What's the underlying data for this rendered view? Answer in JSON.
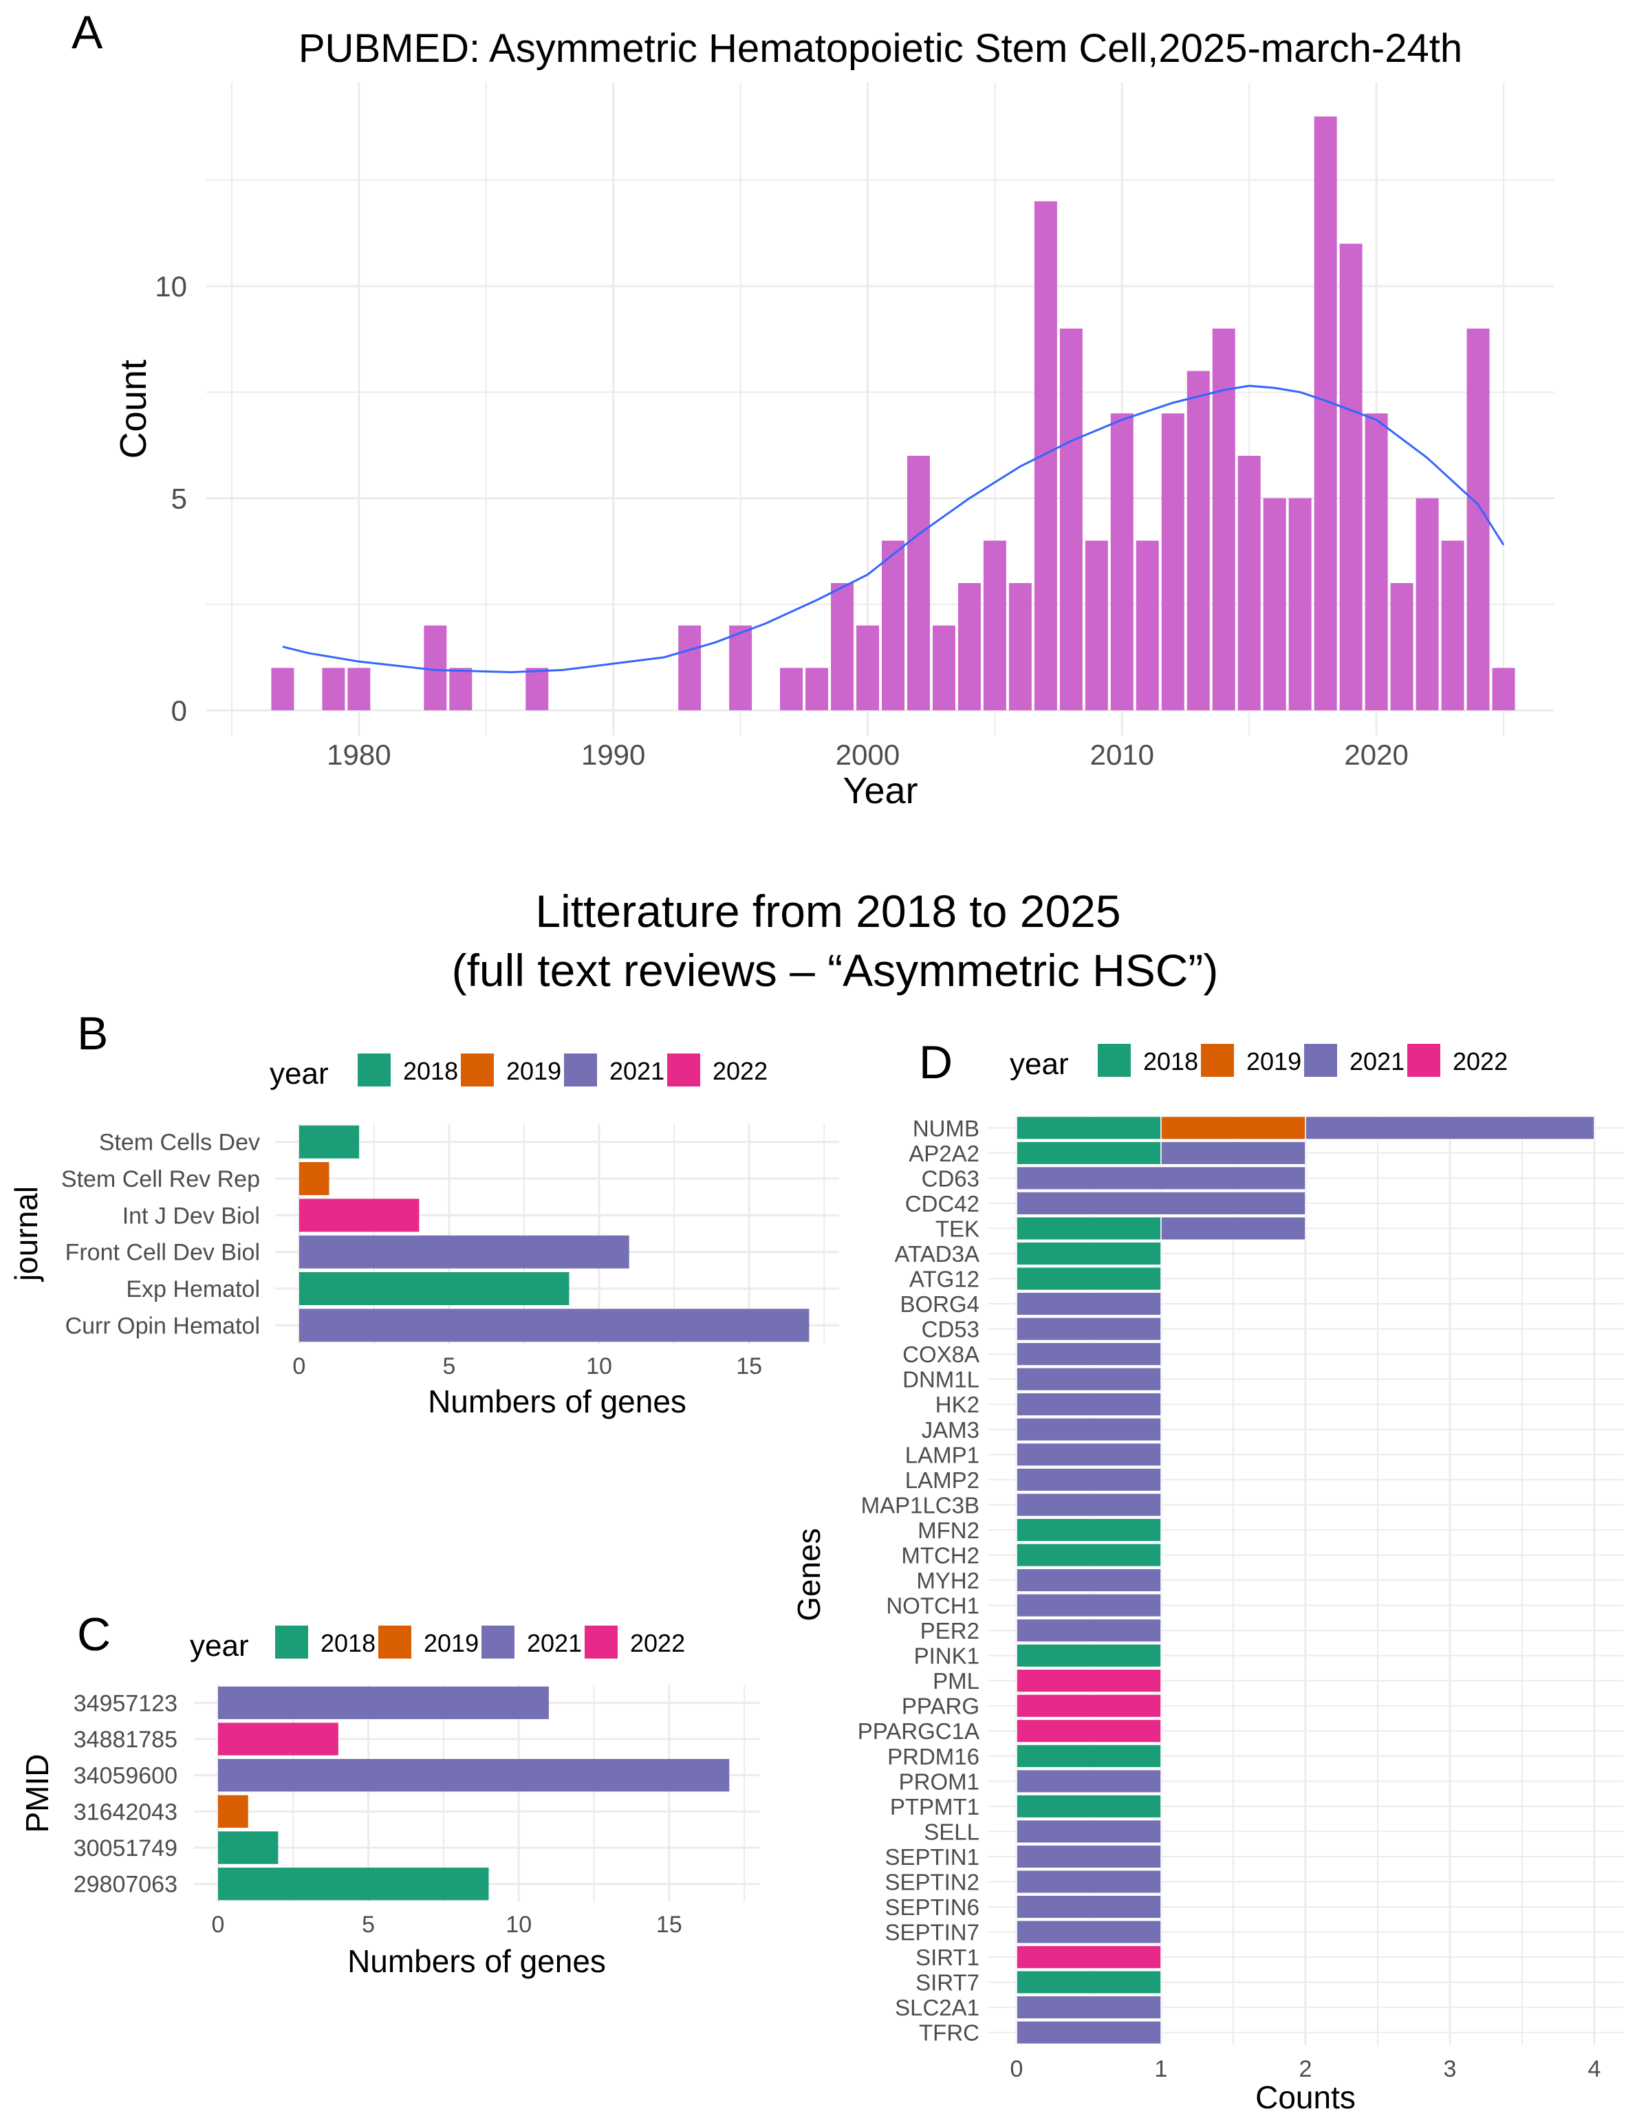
{
  "colors": {
    "2018": "#1b9e77",
    "2019": "#d95f02",
    "2021": "#7570b3",
    "2022": "#e7298a",
    "histogram": "#cc66cc",
    "smooth": "#3366ff",
    "grid": "#ebebeb",
    "tick": "#4d4d4d"
  },
  "figure": {
    "section_title_line1": "Litterature from 2018 to 2025",
    "section_title_line2": "(full text reviews – “Asymmetric HSC”)"
  },
  "chart_data": [
    {
      "id": "A",
      "panel_label": "A",
      "type": "bar",
      "title": "PUBMED: Asymmetric Hematopoietic Stem Cell,2025-march-24th",
      "xlabel": "Year",
      "ylabel": "Count",
      "xlim": [
        1974,
        2027
      ],
      "ylim": [
        -0.6,
        14.8
      ],
      "xticks": [
        1980,
        1990,
        2000,
        2010,
        2020
      ],
      "xtick_labels": [
        "1980",
        "1990",
        "2000",
        "2010",
        "2020"
      ],
      "yticks": [
        0,
        5,
        10
      ],
      "ytick_labels": [
        "0",
        "5",
        "10"
      ],
      "grid": true,
      "x": [
        1977,
        1979,
        1980,
        1983,
        1984,
        1987,
        1993,
        1995,
        1997,
        1998,
        1999,
        2000,
        2001,
        2002,
        2003,
        2004,
        2005,
        2006,
        2007,
        2008,
        2009,
        2010,
        2011,
        2012,
        2013,
        2014,
        2015,
        2016,
        2017,
        2018,
        2019,
        2020,
        2021,
        2022,
        2023,
        2024,
        2025
      ],
      "values": [
        1,
        1,
        1,
        2,
        1,
        1,
        2,
        2,
        1,
        1,
        3,
        2,
        4,
        6,
        2,
        3,
        4,
        3,
        12,
        9,
        4,
        7,
        4,
        7,
        8,
        9,
        6,
        5,
        5,
        14,
        11,
        7,
        3,
        5,
        4,
        9,
        1
      ],
      "smooth": {
        "x": [
          1977,
          1978,
          1980,
          1983,
          1986,
          1988,
          1990,
          1992,
          1994,
          1996,
          1998,
          2000,
          2002,
          2004,
          2006,
          2008,
          2010,
          2012,
          2014,
          2015,
          2016,
          2017,
          2018,
          2020,
          2022,
          2024,
          2025
        ],
        "y": [
          1.5,
          1.35,
          1.15,
          0.95,
          0.9,
          0.95,
          1.1,
          1.25,
          1.6,
          2.05,
          2.6,
          3.2,
          4.15,
          5.0,
          5.75,
          6.35,
          6.85,
          7.25,
          7.55,
          7.65,
          7.6,
          7.5,
          7.3,
          6.85,
          5.95,
          4.85,
          3.9
        ]
      }
    },
    {
      "id": "B",
      "panel_label": "B",
      "type": "bar",
      "orientation": "horizontal",
      "legend_title": "year",
      "legend": [
        "2018",
        "2019",
        "2021",
        "2022"
      ],
      "legend_position": "top",
      "xlabel": "Numbers of genes",
      "ylabel": "journal",
      "xlim": [
        -0.8,
        18
      ],
      "xticks": [
        0,
        5,
        10,
        15
      ],
      "xtick_labels": [
        "0",
        "5",
        "10",
        "15"
      ],
      "grid": true,
      "categories": [
        "Stem Cells Dev",
        "Stem Cell Rev Rep",
        "Int J Dev Biol",
        "Front Cell Dev Biol",
        "Exp Hematol",
        "Curr Opin Hematol"
      ],
      "values": [
        2,
        1,
        4,
        11,
        9,
        17
      ],
      "series": [
        "2018",
        "2019",
        "2022",
        "2021",
        "2018",
        "2021"
      ]
    },
    {
      "id": "C",
      "panel_label": "C",
      "type": "bar",
      "orientation": "horizontal",
      "legend_title": "year",
      "legend": [
        "2018",
        "2019",
        "2021",
        "2022"
      ],
      "legend_position": "top",
      "xlabel": "Numbers of genes",
      "ylabel": "PMID",
      "xlim": [
        -0.8,
        18
      ],
      "xticks": [
        0,
        5,
        10,
        15
      ],
      "xtick_labels": [
        "0",
        "5",
        "10",
        "15"
      ],
      "grid": true,
      "categories": [
        "34957123",
        "34881785",
        "34059600",
        "31642043",
        "30051749",
        "29807063"
      ],
      "values": [
        11,
        4,
        17,
        1,
        2,
        9
      ],
      "series": [
        "2021",
        "2022",
        "2021",
        "2019",
        "2018",
        "2018"
      ]
    },
    {
      "id": "D",
      "panel_label": "D",
      "type": "bar",
      "orientation": "horizontal",
      "stacked": true,
      "legend_title": "year",
      "legend": [
        "2018",
        "2019",
        "2021",
        "2022"
      ],
      "legend_position": "top",
      "xlabel": "Counts",
      "ylabel": "Genes",
      "xlim": [
        -0.2,
        4.2
      ],
      "xticks": [
        0,
        1,
        2,
        3,
        4
      ],
      "xtick_labels": [
        "0",
        "1",
        "2",
        "3",
        "4"
      ],
      "grid": true,
      "categories": [
        "NUMB",
        "AP2A2",
        "CD63",
        "CDC42",
        "TEK",
        "ATAD3A",
        "ATG12",
        "BORG4",
        "CD53",
        "COX8A",
        "DNM1L",
        "HK2",
        "JAM3",
        "LAMP1",
        "LAMP2",
        "MAP1LC3B",
        "MFN2",
        "MTCH2",
        "MYH2",
        "NOTCH1",
        "PER2",
        "PINK1",
        "PML",
        "PPARG",
        "PPARGC1A",
        "PRDM16",
        "PROM1",
        "PTPMT1",
        "SELL",
        "SEPTIN1",
        "SEPTIN2",
        "SEPTIN6",
        "SEPTIN7",
        "SIRT1",
        "SIRT7",
        "SLC2A1",
        "TFRC"
      ],
      "stacks": [
        [
          [
            "2018",
            1
          ],
          [
            "2019",
            1
          ],
          [
            "2021",
            2
          ]
        ],
        [
          [
            "2018",
            1
          ],
          [
            "2021",
            1
          ]
        ],
        [
          [
            "2021",
            2
          ]
        ],
        [
          [
            "2021",
            2
          ]
        ],
        [
          [
            "2018",
            1
          ],
          [
            "2021",
            1
          ]
        ],
        [
          [
            "2018",
            1
          ]
        ],
        [
          [
            "2018",
            1
          ]
        ],
        [
          [
            "2021",
            1
          ]
        ],
        [
          [
            "2021",
            1
          ]
        ],
        [
          [
            "2021",
            1
          ]
        ],
        [
          [
            "2021",
            1
          ]
        ],
        [
          [
            "2021",
            1
          ]
        ],
        [
          [
            "2021",
            1
          ]
        ],
        [
          [
            "2021",
            1
          ]
        ],
        [
          [
            "2021",
            1
          ]
        ],
        [
          [
            "2021",
            1
          ]
        ],
        [
          [
            "2018",
            1
          ]
        ],
        [
          [
            "2018",
            1
          ]
        ],
        [
          [
            "2021",
            1
          ]
        ],
        [
          [
            "2021",
            1
          ]
        ],
        [
          [
            "2021",
            1
          ]
        ],
        [
          [
            "2018",
            1
          ]
        ],
        [
          [
            "2022",
            1
          ]
        ],
        [
          [
            "2022",
            1
          ]
        ],
        [
          [
            "2022",
            1
          ]
        ],
        [
          [
            "2018",
            1
          ]
        ],
        [
          [
            "2021",
            1
          ]
        ],
        [
          [
            "2018",
            1
          ]
        ],
        [
          [
            "2021",
            1
          ]
        ],
        [
          [
            "2021",
            1
          ]
        ],
        [
          [
            "2021",
            1
          ]
        ],
        [
          [
            "2021",
            1
          ]
        ],
        [
          [
            "2021",
            1
          ]
        ],
        [
          [
            "2022",
            1
          ]
        ],
        [
          [
            "2018",
            1
          ]
        ],
        [
          [
            "2021",
            1
          ]
        ],
        [
          [
            "2021",
            1
          ]
        ]
      ]
    }
  ]
}
